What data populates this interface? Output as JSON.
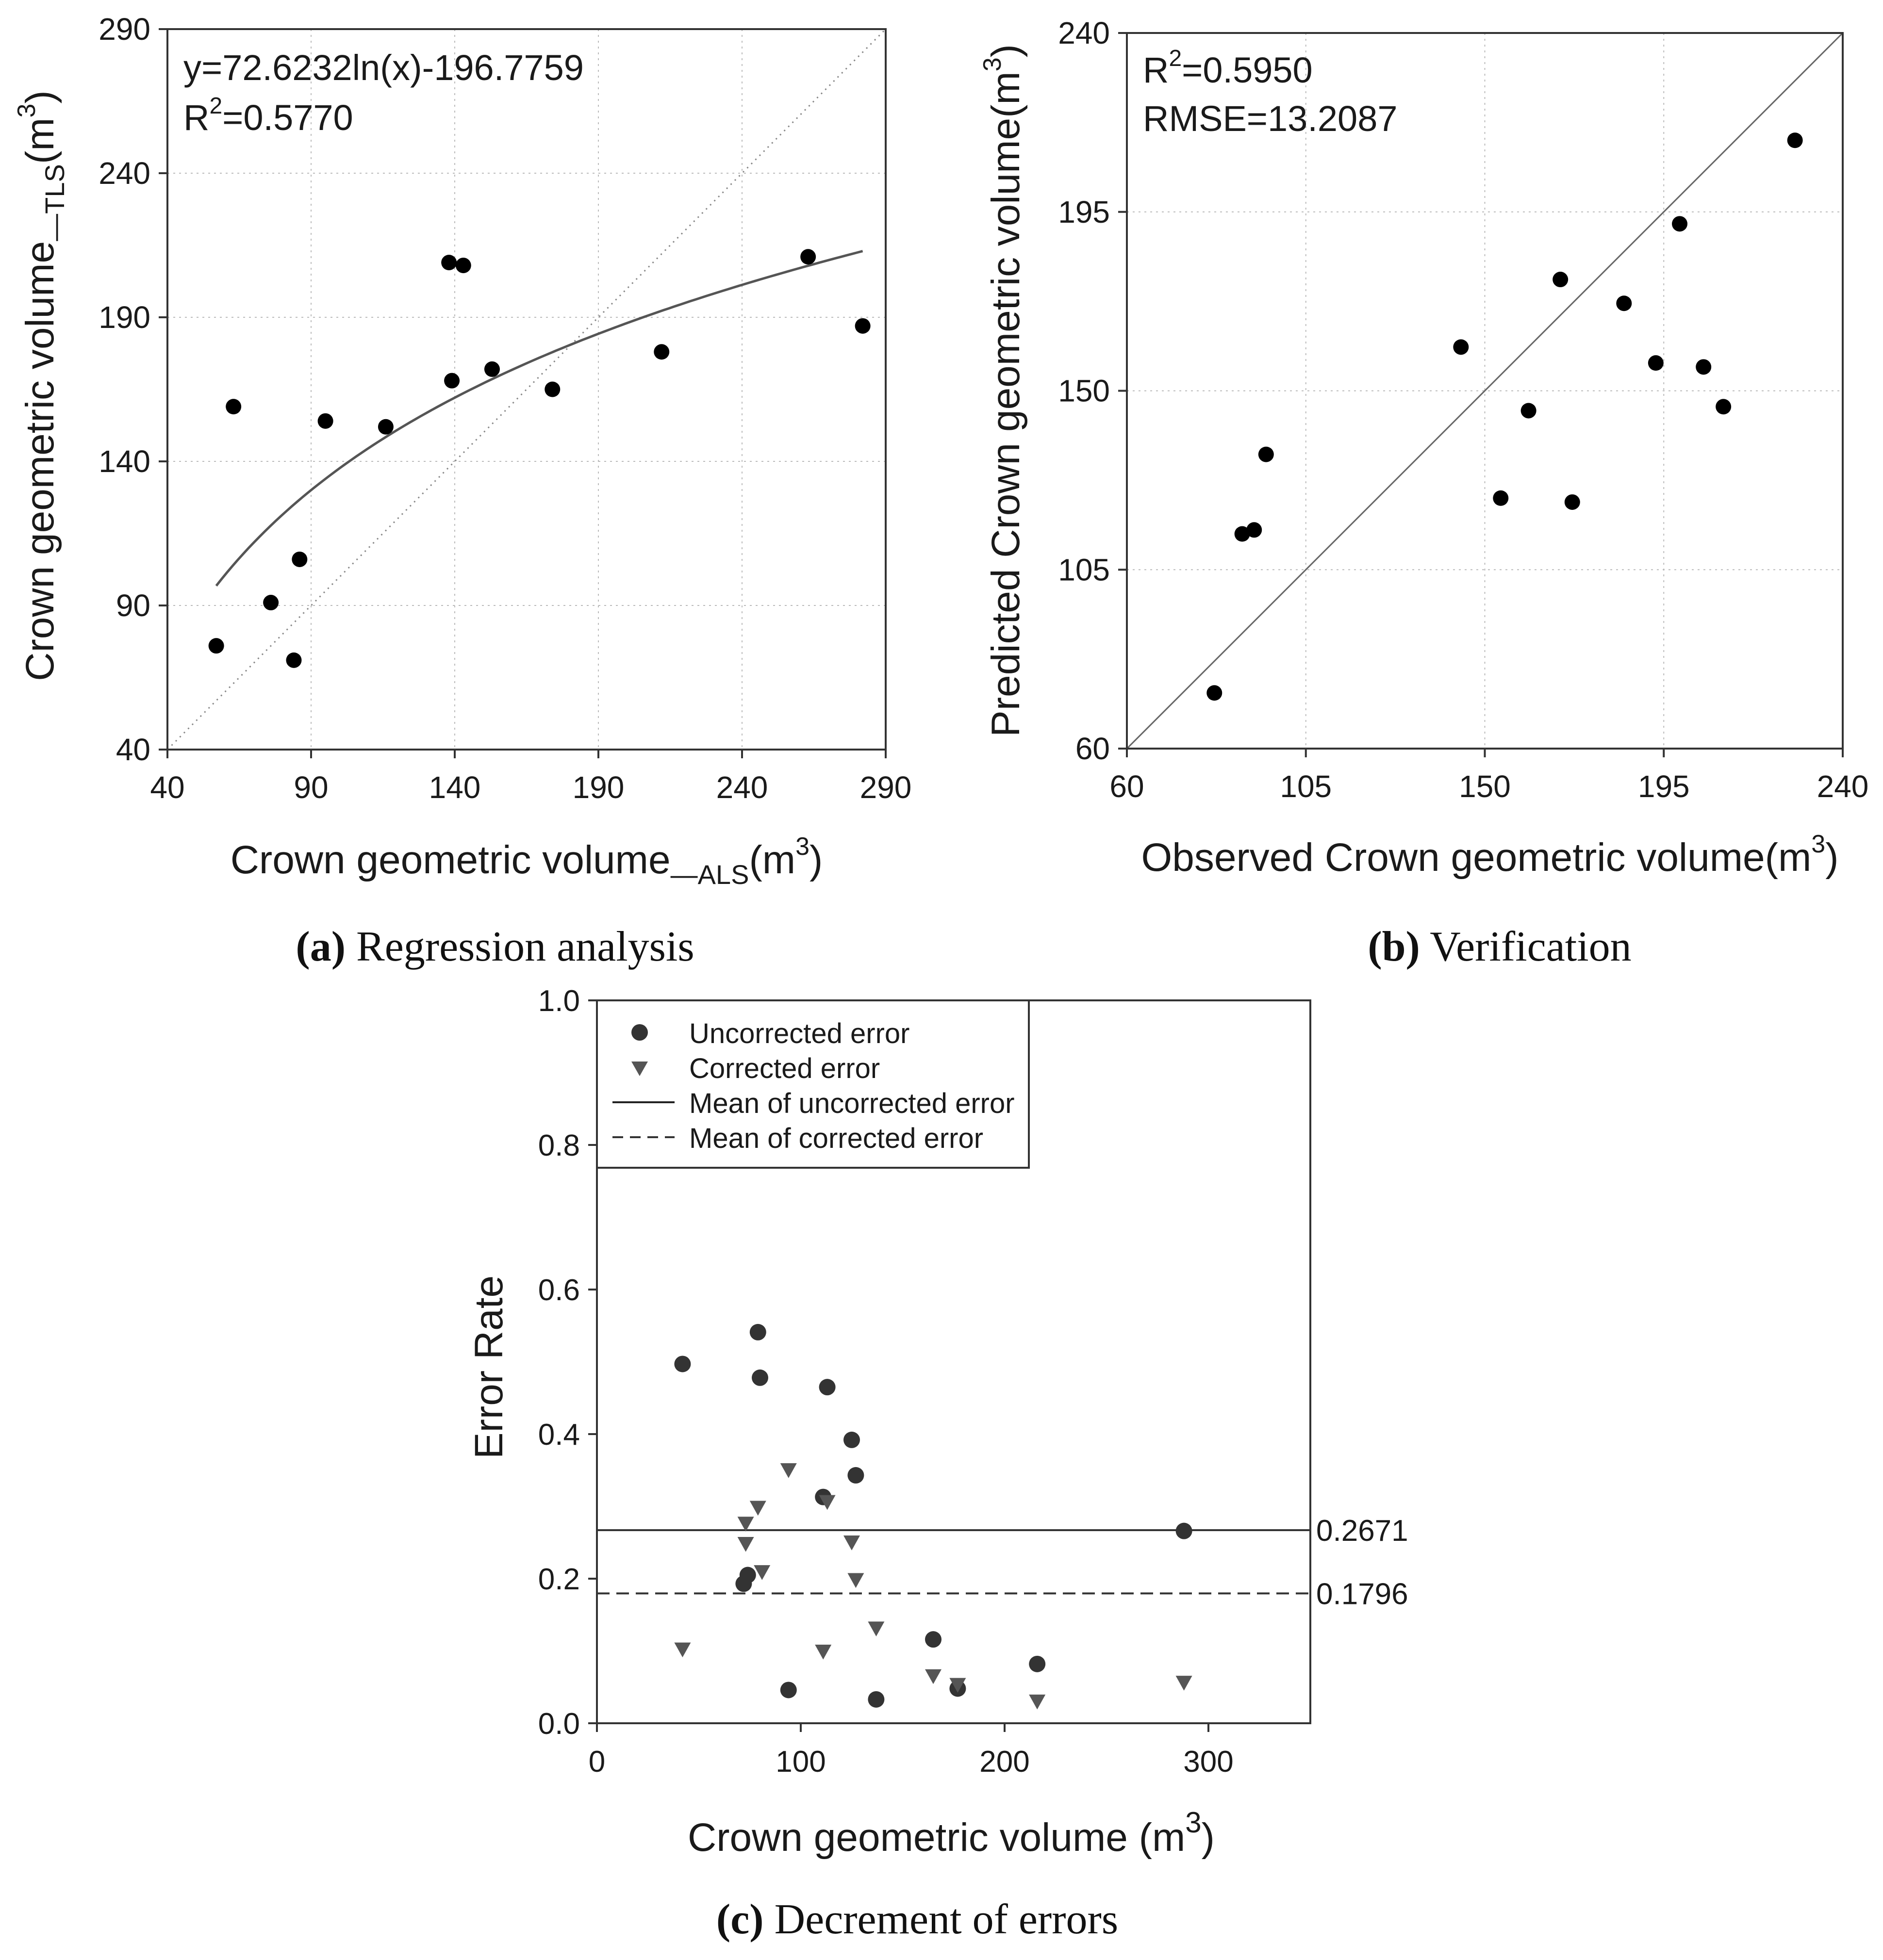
{
  "chart_data": [
    {
      "id": "a",
      "type": "scatter",
      "caption_letter": "(a)",
      "caption_text": " Regression analysis",
      "xlabel_main": "Crown geometric volume",
      "xlabel_sub": "—ALS",
      "xlabel_unit_open": "(m",
      "xlabel_unit_sup": "3",
      "xlabel_unit_close": ")",
      "ylabel_main": "Crown geometric volume",
      "ylabel_sub": "—TLS",
      "ylabel_unit_open": "(m",
      "ylabel_unit_sup": "3",
      "ylabel_unit_close": ")",
      "xlim": [
        40,
        290
      ],
      "ylim": [
        40,
        290
      ],
      "xticks": [
        "40",
        "90",
        "140",
        "190",
        "240",
        "290"
      ],
      "yticks": [
        "40",
        "90",
        "140",
        "190",
        "240",
        "290"
      ],
      "grid": true,
      "annotation_line1": "y=72.6232ln(x)-196.7759",
      "annotation_r2_prefix": "R",
      "annotation_r2_sup": "2",
      "annotation_r2_value": "=0.5770",
      "fit": {
        "type": "log",
        "a": 72.6232,
        "b": -196.7759,
        "x_range": [
          57,
          282
        ]
      },
      "reference_line": "1:1 dotted",
      "points": [
        {
          "x": 57,
          "y": 76
        },
        {
          "x": 63,
          "y": 159
        },
        {
          "x": 76,
          "y": 91
        },
        {
          "x": 84,
          "y": 71
        },
        {
          "x": 86,
          "y": 106
        },
        {
          "x": 95,
          "y": 154
        },
        {
          "x": 116,
          "y": 152
        },
        {
          "x": 138,
          "y": 209
        },
        {
          "x": 139,
          "y": 168
        },
        {
          "x": 143,
          "y": 208
        },
        {
          "x": 153,
          "y": 172
        },
        {
          "x": 174,
          "y": 165
        },
        {
          "x": 212,
          "y": 178
        },
        {
          "x": 263,
          "y": 211
        },
        {
          "x": 282,
          "y": 187
        }
      ]
    },
    {
      "id": "b",
      "type": "scatter",
      "caption_letter": "(b)",
      "caption_text": " Verification",
      "xlabel_main": "Observed Crown geometric volume(m",
      "xlabel_unit_sup": "3",
      "xlabel_unit_close": ")",
      "ylabel_main": "Predicted Crown geometric volume(m",
      "ylabel_unit_sup": "3",
      "ylabel_unit_close": ")",
      "xlim": [
        60,
        240
      ],
      "ylim": [
        60,
        240
      ],
      "xticks": [
        "60",
        "105",
        "150",
        "195",
        "240"
      ],
      "yticks": [
        "60",
        "105",
        "150",
        "195",
        "240"
      ],
      "grid": true,
      "annotation_r2_prefix": "R",
      "annotation_r2_sup": "2",
      "annotation_r2_value": "=0.5950",
      "annotation_rmse": "RMSE=13.2087",
      "reference_line": "1:1 solid",
      "points": [
        {
          "x": 82,
          "y": 74
        },
        {
          "x": 89,
          "y": 114
        },
        {
          "x": 92,
          "y": 115
        },
        {
          "x": 95,
          "y": 134
        },
        {
          "x": 144,
          "y": 161
        },
        {
          "x": 154,
          "y": 123
        },
        {
          "x": 161,
          "y": 145
        },
        {
          "x": 169,
          "y": 178
        },
        {
          "x": 172,
          "y": 122
        },
        {
          "x": 185,
          "y": 172
        },
        {
          "x": 193,
          "y": 157
        },
        {
          "x": 199,
          "y": 192
        },
        {
          "x": 205,
          "y": 156
        },
        {
          "x": 210,
          "y": 146
        },
        {
          "x": 228,
          "y": 213
        }
      ]
    },
    {
      "id": "c",
      "type": "scatter",
      "caption_letter": "(c)",
      "caption_text": " Decrement of errors",
      "xlabel_main": "Crown geometric volume (m",
      "xlabel_unit_sup": "3",
      "xlabel_unit_close": ")",
      "ylabel": "Error Rate",
      "xlim": [
        0,
        350
      ],
      "ylim": [
        0,
        1.0
      ],
      "xticks": [
        {
          "v": 0,
          "t": "0"
        },
        {
          "v": 100,
          "t": "100"
        },
        {
          "v": 200,
          "t": "200"
        },
        {
          "v": 300,
          "t": "300"
        }
      ],
      "yticks": [
        {
          "v": 0,
          "t": "0.0"
        },
        {
          "v": 0.2,
          "t": "0.2"
        },
        {
          "v": 0.4,
          "t": "0.4"
        },
        {
          "v": 0.6,
          "t": "0.6"
        },
        {
          "v": 0.8,
          "t": "0.8"
        },
        {
          "v": 1.0,
          "t": "1.0"
        }
      ],
      "grid": false,
      "legend_position": "top-left",
      "legend": [
        {
          "label": "Uncorrected error",
          "marker": "circle"
        },
        {
          "label": "Corrected error",
          "marker": "triangle-down"
        },
        {
          "label": "Mean of uncorrected error",
          "marker": "solid-line"
        },
        {
          "label": "Mean of corrected error",
          "marker": "dashed-line"
        }
      ],
      "mean_lines": [
        {
          "name": "Mean of uncorrected error",
          "value": 0.2671,
          "label": "0.2671",
          "style": "solid"
        },
        {
          "name": "Mean of corrected error",
          "value": 0.1796,
          "label": "0.1796",
          "style": "dashed"
        }
      ],
      "series": [
        {
          "name": "Uncorrected error",
          "marker": "circle",
          "points": [
            {
              "x": 42,
              "y": 0.497
            },
            {
              "x": 79,
              "y": 0.541
            },
            {
              "x": 80,
              "y": 0.478
            },
            {
              "x": 113,
              "y": 0.465
            },
            {
              "x": 125,
              "y": 0.392
            },
            {
              "x": 111,
              "y": 0.313
            },
            {
              "x": 127,
              "y": 0.343
            },
            {
              "x": 74,
              "y": 0.205
            },
            {
              "x": 72,
              "y": 0.193
            },
            {
              "x": 94,
              "y": 0.046
            },
            {
              "x": 137,
              "y": 0.033
            },
            {
              "x": 165,
              "y": 0.116
            },
            {
              "x": 177,
              "y": 0.048
            },
            {
              "x": 216,
              "y": 0.082
            },
            {
              "x": 288,
              "y": 0.266
            }
          ]
        },
        {
          "name": "Corrected error",
          "marker": "triangle-down",
          "points": [
            {
              "x": 42,
              "y": 0.102
            },
            {
              "x": 73,
              "y": 0.276
            },
            {
              "x": 73,
              "y": 0.248
            },
            {
              "x": 79,
              "y": 0.298
            },
            {
              "x": 81,
              "y": 0.209
            },
            {
              "x": 94,
              "y": 0.35
            },
            {
              "x": 113,
              "y": 0.306
            },
            {
              "x": 111,
              "y": 0.099
            },
            {
              "x": 125,
              "y": 0.25
            },
            {
              "x": 127,
              "y": 0.198
            },
            {
              "x": 137,
              "y": 0.131
            },
            {
              "x": 165,
              "y": 0.065
            },
            {
              "x": 177,
              "y": 0.053
            },
            {
              "x": 216,
              "y": 0.03
            },
            {
              "x": 288,
              "y": 0.056
            }
          ]
        }
      ]
    }
  ]
}
